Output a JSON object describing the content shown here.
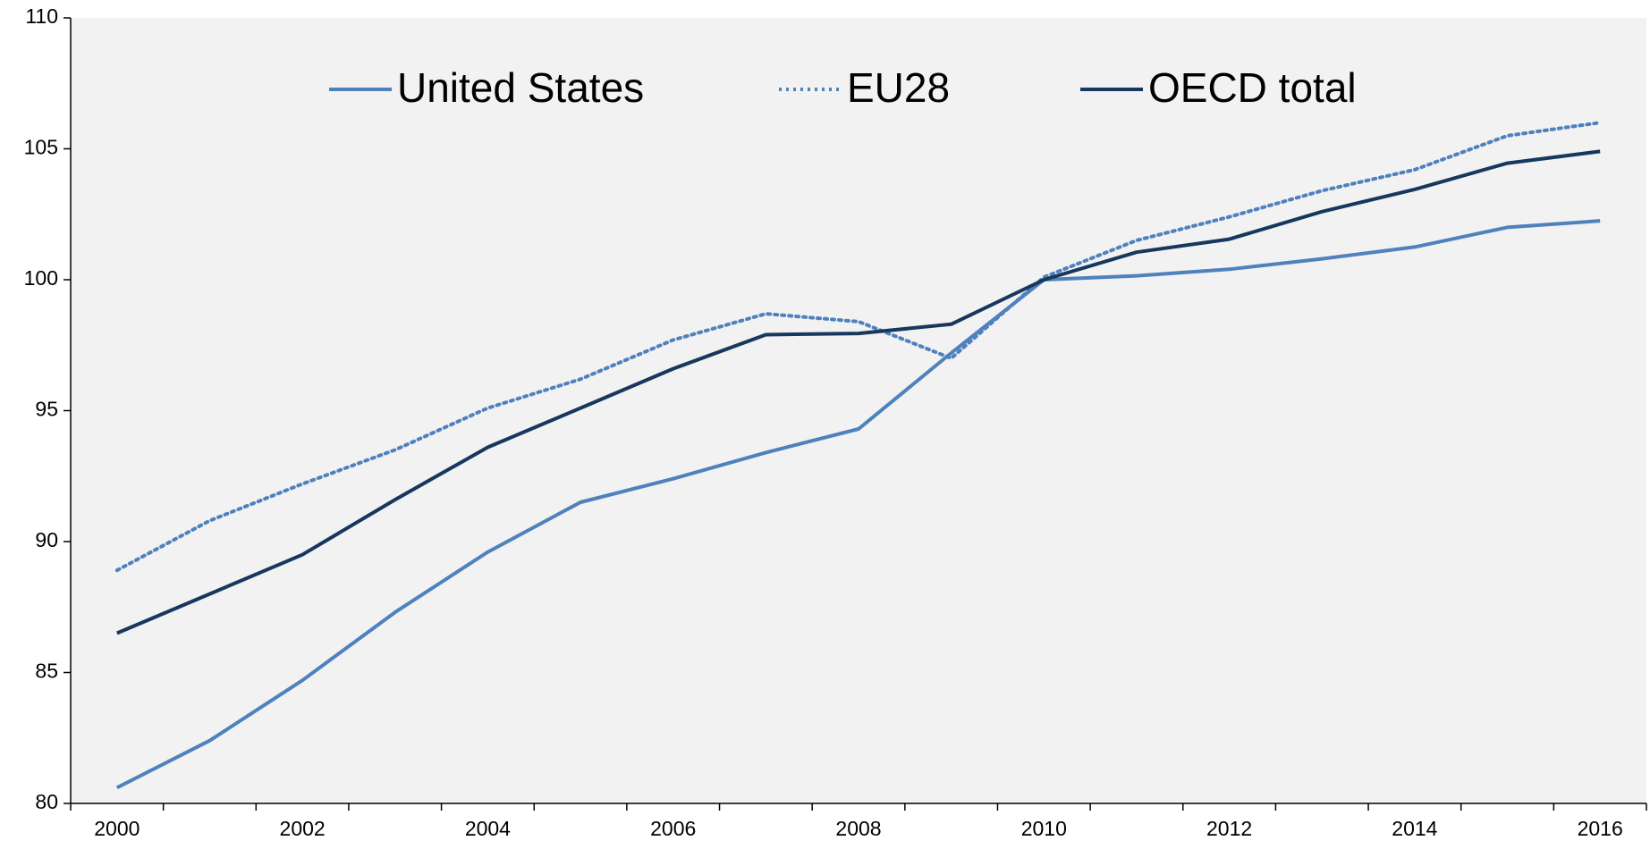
{
  "chart_data": {
    "type": "line",
    "categories": [
      "2000",
      null,
      "2002",
      null,
      "2004",
      null,
      "2006",
      null,
      "2008",
      null,
      "2010",
      null,
      "2012",
      null,
      "2014",
      null,
      "2016"
    ],
    "series": [
      {
        "name": "United States",
        "color": "#4f81bd",
        "style": "solid",
        "values": [
          80.6,
          82.4,
          84.7,
          87.3,
          89.6,
          91.5,
          92.4,
          93.4,
          94.3,
          97.2,
          100,
          100.15,
          100.4,
          100.8,
          101.25,
          102,
          102.25
        ]
      },
      {
        "name": "EU28",
        "color": "#4f81bd",
        "style": "dotted",
        "values": [
          88.9,
          90.8,
          92.2,
          93.5,
          95.1,
          96.2,
          97.7,
          98.7,
          98.4,
          97,
          100.1,
          101.5,
          102.4,
          103.4,
          104.2,
          105.5,
          106
        ]
      },
      {
        "name": "OECD total",
        "color": "#17375e",
        "style": "solid",
        "values": [
          86.5,
          88,
          89.5,
          91.6,
          93.6,
          95.1,
          96.6,
          97.9,
          97.95,
          98.3,
          100,
          101.05,
          101.55,
          102.6,
          103.45,
          104.45,
          104.9
        ]
      }
    ],
    "ylim": [
      80,
      110
    ],
    "yticks": [
      80,
      85,
      90,
      95,
      100,
      105,
      110
    ],
    "grid": false,
    "legend": "top"
  }
}
